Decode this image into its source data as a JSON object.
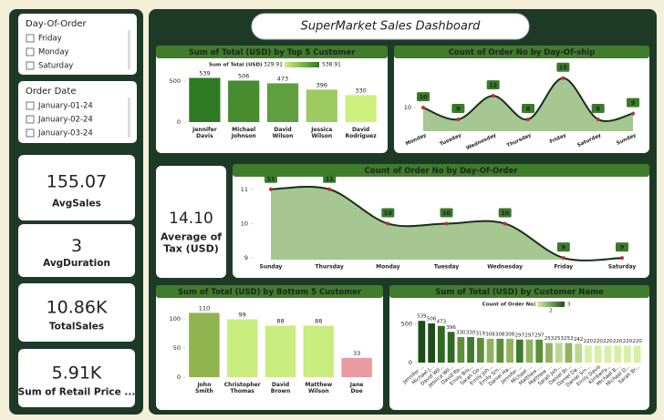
{
  "dashboard_title": "SuperMarket Sales Dashboard",
  "slicers": [
    {
      "title": "Day-Of-Order",
      "items": [
        "Friday",
        "Monday",
        "Saturday"
      ]
    },
    {
      "title": "Order Date",
      "items": [
        "January-01-24",
        "January-02-24",
        "January-03-24"
      ]
    }
  ],
  "cards": [
    {
      "value": "155.07",
      "label": "AvgSales"
    },
    {
      "value": "3",
      "label": "AvgDuration"
    },
    {
      "value": "10.86K",
      "label": "TotalSales"
    },
    {
      "value": "5.91K",
      "label": "Sum of Retail Price ..."
    },
    {
      "value": "14.10",
      "label": "Average of Tax (USD)"
    }
  ],
  "chart_data": [
    {
      "type": "bar",
      "title": "Sum of Total (USD) by Top 5 Customer",
      "categories": [
        "Jennifer Davis",
        "Michael Johnson",
        "David Wilson",
        "Jessica Wilson",
        "David Rodriguez"
      ],
      "values": [
        538.91,
        506,
        473,
        396,
        329.91
      ],
      "value_labels": [
        "539",
        "506",
        "473",
        "396",
        "330"
      ],
      "ylim": [
        0,
        600
      ],
      "yticks": [
        0,
        500
      ],
      "legend": {
        "title": "Sum of Total (USD)",
        "min": 329.91,
        "max": 538.91,
        "colors": [
          "#cdf07e",
          "#2e7a22"
        ]
      }
    },
    {
      "type": "area",
      "title": "Count of Order No by Day-Of-ship",
      "categories": [
        "Monday",
        "Tuesday",
        "Wednesday",
        "Thursday",
        "Friday",
        "Saturday",
        "Sunday"
      ],
      "values": [
        10,
        8,
        12,
        8,
        15,
        8,
        9
      ],
      "ylim": [
        6,
        16.5
      ],
      "yticks": [
        10
      ],
      "color": "#9cc086"
    },
    {
      "type": "area",
      "title": "Count of Order No by Day-Of-Order",
      "categories": [
        "Sunday",
        "Thursday",
        "Monday",
        "Tuesday",
        "Wednesday",
        "Friday",
        "Saturday"
      ],
      "values": [
        11,
        11,
        10,
        10,
        10,
        9,
        9
      ],
      "ylim": [
        8.95,
        11.1
      ],
      "yticks": [
        9,
        10,
        11
      ],
      "color": "#9cc086"
    },
    {
      "type": "bar",
      "title": "Sum of Total (USD) by Bottom 5 Customer",
      "categories": [
        "John Smith",
        "Christopher Thomas",
        "David Brown",
        "Matthew Wilson",
        "Jane Doe"
      ],
      "values": [
        110,
        99,
        88,
        88,
        33
      ],
      "ylim": [
        0,
        120
      ],
      "yticks": [
        0,
        50,
        100
      ],
      "colors": [
        "#8fb34e",
        "#c9ec7e",
        "#c9ec7e",
        "#c9ec7e",
        "#ea9aa1"
      ]
    },
    {
      "type": "bar",
      "title": "Sum of Total (USD) by Customer Name",
      "categories": [
        "Jennifer ...",
        "Michael J...",
        "David Wil...",
        "Jessica Wil...",
        "David Ro...",
        "Emily Bro...",
        "Sarah Go...",
        "Emily Joh...",
        "Emily Sm...",
        "Daniel Ha...",
        "Jennifer ...",
        "Michael ...",
        "Matthew ...",
        "Matthew ...",
        "Sarah Joh...",
        "Daniel Br...",
        "Daniel Da...",
        "Daniel Sm...",
        "Emily Davis",
        "Kimberly...",
        "Michael B...",
        "Michael D...",
        "Sarah Br..."
      ],
      "values": [
        539,
        506,
        473,
        396,
        330,
        330,
        319,
        308,
        308,
        308,
        297,
        297,
        297,
        253,
        253,
        253,
        242,
        220,
        220,
        220,
        220,
        220,
        220
      ],
      "ylim": [
        0,
        600
      ],
      "yticks": [
        0,
        500
      ],
      "colors": [
        "#1f4d1a",
        "#1f4d1a",
        "#2e6a22",
        "#2e6a22",
        "#5c8f3a",
        "#3f7a2c",
        "#5c8f3a",
        "#8fb35e",
        "#5c8f3a",
        "#8fb35e",
        "#3f7a2c",
        "#8fb35e",
        "#5c8f3a",
        "#8fb35e",
        "#b9d98e",
        "#8fb35e",
        "#b9d98e",
        "#d7f0a6",
        "#d7f0a6",
        "#d7f0a6",
        "#d7f0a6",
        "#d7f0a6",
        "#d7f0a6"
      ],
      "legend": {
        "title": "Count of Order No",
        "ticks": [
          1,
          2,
          3
        ],
        "colors": [
          "#d7f0a6",
          "#1f4d1a"
        ]
      }
    }
  ]
}
